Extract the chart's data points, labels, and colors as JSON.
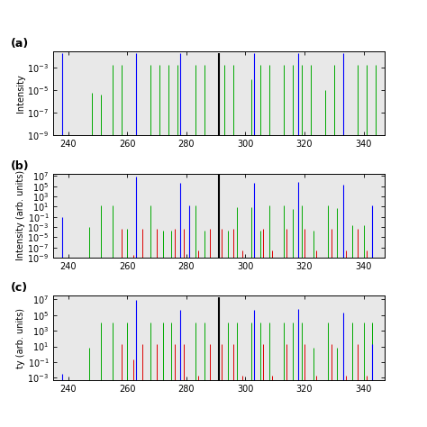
{
  "xlim": [
    235,
    347
  ],
  "xticks": [
    240,
    260,
    280,
    300,
    320,
    340
  ],
  "panel_a": {
    "ylim_low": 1e-09,
    "ylim_high": 0.03,
    "ytick_vals": [
      1e-09,
      1e-07,
      1e-05,
      0.001
    ],
    "ytick_labels": [
      "10$^{-9}$",
      "10$^{-7}$",
      "10$^{-5}$",
      "10$^{-3}$"
    ],
    "ylabel": "Intensity",
    "label": "(a)",
    "blue_lines": [
      [
        238,
        0.02
      ],
      [
        263,
        0.02
      ],
      [
        278,
        0.02
      ],
      [
        303,
        0.02
      ],
      [
        318,
        0.02
      ],
      [
        333,
        0.02
      ]
    ],
    "green_lines": [
      [
        248,
        6e-06
      ],
      [
        251,
        4e-06
      ],
      [
        255,
        0.002
      ],
      [
        258,
        0.002
      ],
      [
        268,
        0.002
      ],
      [
        271,
        0.002
      ],
      [
        274,
        0.002
      ],
      [
        277,
        0.002
      ],
      [
        283,
        0.002
      ],
      [
        286,
        0.002
      ],
      [
        293,
        0.002
      ],
      [
        296,
        0.002
      ],
      [
        302,
        0.0001
      ],
      [
        305,
        0.002
      ],
      [
        308,
        0.002
      ],
      [
        313,
        0.002
      ],
      [
        316,
        0.002
      ],
      [
        319,
        0.002
      ],
      [
        322,
        0.002
      ],
      [
        327,
        1e-05
      ],
      [
        330,
        0.002
      ],
      [
        333,
        0.002
      ],
      [
        338,
        0.002
      ],
      [
        341,
        0.002
      ],
      [
        344,
        0.002
      ]
    ],
    "black_lines": [
      [
        291,
        0.02
      ]
    ]
  },
  "panel_b": {
    "ylim_low": 1e-09,
    "ylim_high": 30000000.0,
    "ytick_vals": [
      1e-09,
      1e-07,
      1e-05,
      0.001,
      0.1,
      10.0,
      1000.0,
      100000.0,
      10000000.0
    ],
    "ytick_labels": [
      "10$^{-9}$",
      "10$^{-7}$",
      "10$^{-5}$",
      "10$^{-3}$",
      "10$^{-1}$",
      "10$^{1}$",
      "10$^{3}$",
      "10$^{5}$",
      "10$^{7}$"
    ],
    "ylabel": "Intensity (arb. units)",
    "label": "(b)",
    "blue_lines": [
      [
        238,
        0.08
      ],
      [
        263,
        8000000.0
      ],
      [
        278,
        500000.0
      ],
      [
        281,
        20.0
      ],
      [
        303,
        500000.0
      ],
      [
        318,
        600000.0
      ],
      [
        333,
        200000.0
      ],
      [
        343,
        20.0
      ]
    ],
    "green_lines": [
      [
        247,
        0.001
      ],
      [
        251,
        15.0
      ],
      [
        255,
        15.0
      ],
      [
        260,
        0.0005
      ],
      [
        268,
        15.0
      ],
      [
        272,
        0.0002
      ],
      [
        275,
        0.0002
      ],
      [
        283,
        15.0
      ],
      [
        286,
        0.0002
      ],
      [
        291,
        8.0
      ],
      [
        294,
        0.0002
      ],
      [
        297,
        8.0
      ],
      [
        302,
        8.0
      ],
      [
        305,
        0.0002
      ],
      [
        308,
        15.0
      ],
      [
        313,
        15.0
      ],
      [
        316,
        3.0
      ],
      [
        319,
        15.0
      ],
      [
        323,
        0.0002
      ],
      [
        328,
        15.0
      ],
      [
        331,
        5.0
      ],
      [
        336,
        0.002
      ],
      [
        340,
        0.002
      ],
      [
        343,
        0.002
      ]
    ],
    "red_lines": [
      [
        258,
        0.0005
      ],
      [
        262,
        3e-09
      ],
      [
        265,
        0.0005
      ],
      [
        270,
        0.0005
      ],
      [
        276,
        0.0005
      ],
      [
        279,
        0.0005
      ],
      [
        284,
        3e-08
      ],
      [
        288,
        0.0005
      ],
      [
        292,
        0.0005
      ],
      [
        296,
        0.0005
      ],
      [
        299,
        3e-08
      ],
      [
        306,
        0.0005
      ],
      [
        309,
        3e-08
      ],
      [
        314,
        0.0005
      ],
      [
        320,
        0.0005
      ],
      [
        324,
        3e-08
      ],
      [
        329,
        0.0005
      ],
      [
        334,
        3e-08
      ],
      [
        338,
        0.0005
      ],
      [
        341,
        3e-08
      ]
    ],
    "black_lines": [
      [
        291,
        20000000.0
      ]
    ]
  },
  "panel_c": {
    "ylim_low": 0.0005,
    "ylim_high": 30000000.0,
    "ytick_vals": [
      0.001,
      0.1,
      10.0,
      1000.0,
      100000.0,
      10000000.0
    ],
    "ytick_labels": [
      "10$^{-3}$",
      "10$^{-1}$",
      "10$^{1}$",
      "10$^{3}$",
      "10$^{5}$",
      "10$^{7}$"
    ],
    "ylabel": "ty (arb. units)",
    "label": "(c)",
    "blue_lines": [
      [
        238,
        0.003
      ],
      [
        263,
        8000000.0
      ],
      [
        278,
        500000.0
      ],
      [
        303,
        500000.0
      ],
      [
        318,
        600000.0
      ],
      [
        333,
        200000.0
      ],
      [
        343,
        20.0
      ]
    ],
    "green_lines": [
      [
        247,
        6.0
      ],
      [
        251,
        10000.0
      ],
      [
        255,
        10000.0
      ],
      [
        260,
        10000.0
      ],
      [
        268,
        10000.0
      ],
      [
        272,
        10000.0
      ],
      [
        275,
        10000.0
      ],
      [
        283,
        10000.0
      ],
      [
        286,
        10000.0
      ],
      [
        291,
        10000.0
      ],
      [
        294,
        10000.0
      ],
      [
        297,
        10000.0
      ],
      [
        302,
        10000.0
      ],
      [
        305,
        10000.0
      ],
      [
        308,
        10000.0
      ],
      [
        313,
        10000.0
      ],
      [
        316,
        10000.0
      ],
      [
        319,
        10000.0
      ],
      [
        323,
        6.0
      ],
      [
        328,
        10000.0
      ],
      [
        331,
        6.0
      ],
      [
        336,
        10000.0
      ],
      [
        340,
        10000.0
      ],
      [
        343,
        10000.0
      ]
    ],
    "red_lines": [
      [
        258,
        20.0
      ],
      [
        262,
        0.2
      ],
      [
        265,
        20.0
      ],
      [
        270,
        20.0
      ],
      [
        276,
        20.0
      ],
      [
        279,
        20.0
      ],
      [
        284,
        0.002
      ],
      [
        288,
        20.0
      ],
      [
        292,
        20.0
      ],
      [
        296,
        20.0
      ],
      [
        299,
        0.002
      ],
      [
        306,
        20.0
      ],
      [
        309,
        0.002
      ],
      [
        314,
        20.0
      ],
      [
        320,
        20.0
      ],
      [
        324,
        0.002
      ],
      [
        329,
        20.0
      ],
      [
        334,
        0.002
      ],
      [
        338,
        20.0
      ],
      [
        341,
        0.002
      ]
    ],
    "black_lines": [
      [
        291,
        20000000.0
      ]
    ]
  },
  "bg_color": "#e8e8e8",
  "blue": "#0000ff",
  "green": "#00aa00",
  "red": "#dd0000",
  "black": "#000000"
}
